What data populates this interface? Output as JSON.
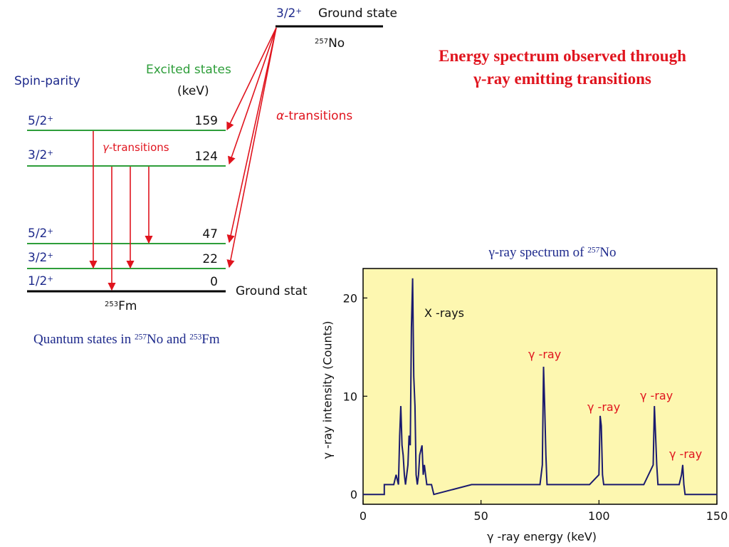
{
  "level_diagram": {
    "top_state": {
      "spin": "3/2",
      "parity": "+",
      "name": "Ground state",
      "nucleus_mass": "257",
      "nucleus_symbol": "No"
    },
    "spin_parity_heading": "Spin-parity",
    "excited_heading": "Excited states",
    "excited_unit": "(keV)",
    "alpha_label": "-transitions",
    "alpha_symbol": "α",
    "gamma_label": "-transitions",
    "gamma_symbol": "γ",
    "levels": [
      {
        "spin": "5/2",
        "parity": "+",
        "energy": "159"
      },
      {
        "spin": "3/2",
        "parity": "+",
        "energy": "124"
      },
      {
        "spin": "5/2",
        "parity": "+",
        "energy": "47"
      },
      {
        "spin": "3/2",
        "parity": "+",
        "energy": "22"
      },
      {
        "spin": "1/2",
        "parity": "+",
        "energy": "0"
      }
    ],
    "bottom_ground_label": "Ground stat",
    "bottom_nucleus_mass": "253",
    "bottom_nucleus_symbol": "Fm",
    "caption_prefix": "Quantum states in ",
    "caption_mass1": "257",
    "caption_sym1": "No and ",
    "caption_mass2": "253",
    "caption_sym2": "Fm"
  },
  "headline": {
    "line1": "Energy spectrum observed through",
    "line2": "γ-ray emitting transitions"
  },
  "spectrum": {
    "title_prefix": "γ-ray spectrum of ",
    "title_mass": "257",
    "title_symbol": "No",
    "annotations": {
      "xrays": "X -rays",
      "gamma": "γ -ray"
    },
    "colors": {
      "plot_bg": "#fdf7b0",
      "line": "#1a1a6e",
      "gamma_text": "#e0141e",
      "title_red": "#e0141e"
    }
  },
  "chart_data": {
    "type": "line",
    "xlabel": "γ -ray energy (keV)",
    "ylabel": "γ -ray intensity (Counts)",
    "xlim": [
      0,
      150
    ],
    "ylim": [
      -1,
      23
    ],
    "xticks": [
      0,
      50,
      100,
      150
    ],
    "yticks": [
      0,
      10,
      20
    ],
    "x": [
      9,
      10,
      13,
      14,
      15,
      15.5,
      16,
      16.5,
      17,
      17.5,
      18,
      19,
      19.5,
      20,
      20.5,
      21,
      21.5,
      22,
      22.5,
      23,
      23.5,
      24,
      25,
      25.5,
      26,
      26.5,
      27,
      27.5,
      28,
      29,
      30,
      46,
      47,
      55,
      64,
      66,
      69,
      72,
      75,
      76,
      76.5,
      77,
      77.5,
      78,
      82,
      84,
      85,
      91,
      93,
      94,
      96,
      100,
      100.5,
      101,
      101.5,
      102,
      115,
      116,
      119,
      123,
      123.5,
      124,
      124.5,
      125,
      128,
      129,
      132,
      133,
      134,
      135,
      135.5,
      136,
      136.5
    ],
    "y": [
      1,
      1,
      1,
      2,
      1,
      6,
      9,
      5,
      4,
      2,
      1,
      3,
      6,
      5,
      17,
      22,
      12,
      9,
      2,
      1,
      2,
      4,
      5,
      2,
      3,
      2,
      1,
      1,
      1,
      1,
      0,
      1,
      1,
      1,
      1,
      1,
      1,
      1,
      1,
      3,
      13,
      9,
      4,
      1,
      1,
      1,
      1,
      1,
      1,
      1,
      1,
      2,
      8,
      7,
      2,
      1,
      1,
      1,
      1,
      3,
      9,
      6,
      3,
      1,
      1,
      1,
      1,
      1,
      1,
      2,
      3,
      1,
      0
    ]
  }
}
